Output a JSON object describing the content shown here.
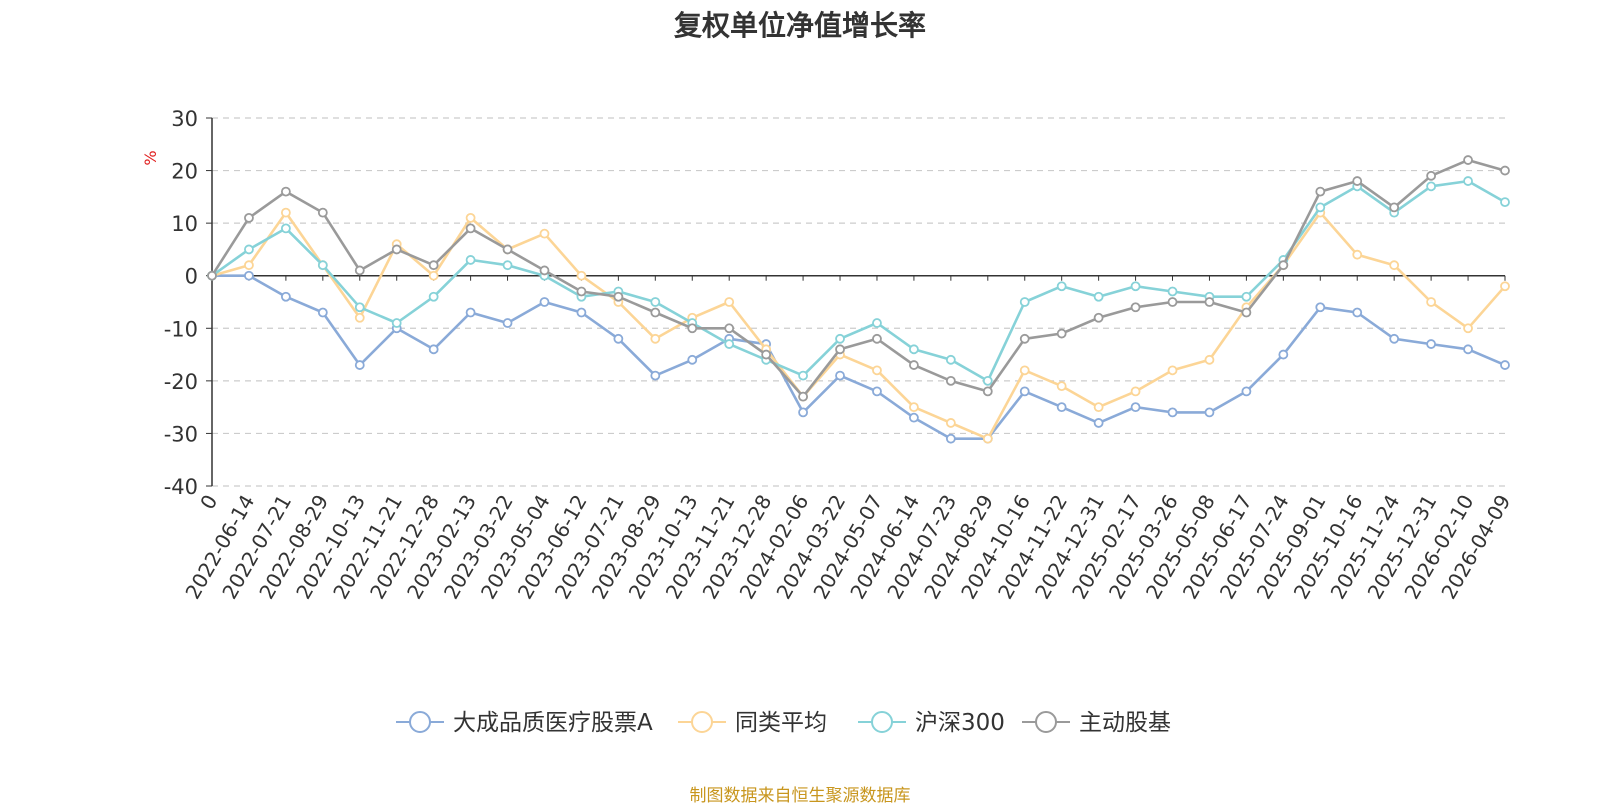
{
  "source_note": "制图数据来自恒生聚源数据库",
  "colors": {
    "fund": "#8aaad8",
    "peer": "#fcd596",
    "hs300": "#86d2d8",
    "active": "#9a9a9a",
    "unit": "#e02020",
    "axis": "#333333",
    "grid": "#cccccc"
  },
  "chart_data": {
    "type": "line",
    "title": "复权单位净值增长率",
    "ylabel": "%",
    "ylim": [
      -40,
      30
    ],
    "yticks": [
      30,
      20,
      10,
      0,
      -10,
      -20,
      -30,
      -40
    ],
    "grid": "horizontal dashed",
    "legend_position": "bottom-center",
    "x_labels": [
      "0",
      "2022-06-14",
      "2022-07-21",
      "2022-08-29",
      "2022-10-13",
      "2022-11-21",
      "2022-12-28",
      "2023-02-13",
      "2023-03-22",
      "2023-05-04",
      "2023-06-12",
      "2023-07-21",
      "2023-08-29",
      "2023-10-13",
      "2023-11-21",
      "2023-12-28",
      "2024-02-06",
      "2024-03-22",
      "2024-05-07",
      "2024-06-14",
      "2024-07-23",
      "2024-08-29",
      "2024-10-16",
      "2024-11-22",
      "2024-12-31",
      "2025-02-17",
      "2025-03-26",
      "2025-05-08",
      "2025-06-17",
      "2025-07-24",
      "2025-09-01",
      "2025-10-16",
      "2025-11-24",
      "2025-12-31",
      "2026-02-10",
      "2026-04-09"
    ],
    "series": [
      {
        "name": "大成品质医疗股票A",
        "values": [
          0,
          0,
          -4,
          -7,
          -17,
          -10,
          -14,
          -7,
          -9,
          -5,
          -7,
          -12,
          -19,
          -16,
          -12,
          -13,
          -26,
          -19,
          -22,
          -27,
          -31,
          -31,
          -22,
          -25,
          -28,
          -25,
          -26,
          -26,
          -22,
          -15,
          -6,
          -7,
          -12,
          -13,
          -14,
          -17
        ]
      },
      {
        "name": "同类平均",
        "values": [
          0,
          2,
          12,
          2,
          -8,
          6,
          0,
          11,
          5,
          8,
          0,
          -5,
          -12,
          -8,
          -5,
          -14,
          -23,
          -15,
          -18,
          -25,
          -28,
          -31,
          -18,
          -21,
          -25,
          -22,
          -18,
          -16,
          -6,
          2,
          12,
          4,
          2,
          -5,
          -10,
          -2
        ]
      },
      {
        "name": "沪深300",
        "values": [
          0,
          5,
          9,
          2,
          -6,
          -9,
          -4,
          3,
          2,
          0,
          -4,
          -3,
          -5,
          -9,
          -13,
          -16,
          -19,
          -12,
          -9,
          -14,
          -16,
          -20,
          -5,
          -2,
          -4,
          -2,
          -3,
          -4,
          -4,
          3,
          13,
          17,
          12,
          17,
          18,
          14
        ]
      },
      {
        "name": "主动股基",
        "values": [
          0,
          11,
          16,
          12,
          1,
          5,
          2,
          9,
          5,
          1,
          -3,
          -4,
          -7,
          -10,
          -10,
          -15,
          -23,
          -14,
          -12,
          -17,
          -20,
          -22,
          -12,
          -11,
          -8,
          -6,
          -5,
          -5,
          -7,
          2,
          16,
          18,
          13,
          19,
          22,
          20
        ]
      }
    ]
  }
}
